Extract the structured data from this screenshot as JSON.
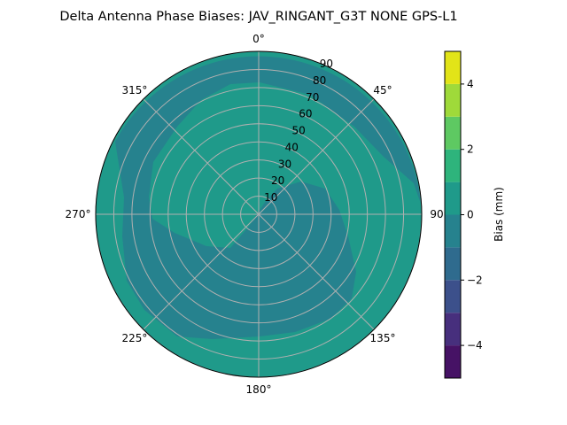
{
  "chart_data": {
    "type": "polar-contour",
    "title": "Delta Antenna Phase Biases: JAV_RINGANT_G3T NONE GPS-L1",
    "angular_ticks": [
      "0°",
      "45°",
      "90°",
      "135°",
      "180°",
      "225°",
      "270°",
      "315°"
    ],
    "angular_tick_values": [
      0,
      45,
      90,
      135,
      180,
      225,
      270,
      315
    ],
    "angular_direction": "clockwise",
    "zero_location": "top",
    "radial_ticks": [
      "10",
      "20",
      "30",
      "40",
      "50",
      "60",
      "70",
      "80",
      "90"
    ],
    "radial_tick_values": [
      10,
      20,
      30,
      40,
      50,
      60,
      70,
      80,
      90
    ],
    "rlim": [
      0,
      90
    ],
    "grid": true,
    "levels": [
      -5,
      -4,
      -3,
      -2,
      -1,
      0,
      1,
      2,
      3,
      4,
      5
    ],
    "level_colors": [
      "#461265",
      "#472f7d",
      "#3c508b",
      "#2f6b8e",
      "#26828e",
      "#1f9a8a",
      "#2eb47c",
      "#5ec962",
      "#9fda3a",
      "#e2e418"
    ],
    "regions_shown": [
      {
        "range": [
          -1,
          0
        ],
        "color": "#26828e",
        "description": "outer ring from 290° through 0° to 95° beyond ~75°, left band, and lower/central blob"
      },
      {
        "range": [
          0,
          1
        ],
        "color": "#1f9a8a",
        "description": "north-west interior and outer ring from 95° to 270°"
      }
    ],
    "colorbar": {
      "label": "Bias (mm)",
      "ticks": [
        "−4",
        "−2",
        "0",
        "2",
        "4"
      ],
      "tick_values": [
        -4,
        -2,
        0,
        2,
        4
      ],
      "range": [
        -5,
        5
      ],
      "placement": "right"
    }
  }
}
